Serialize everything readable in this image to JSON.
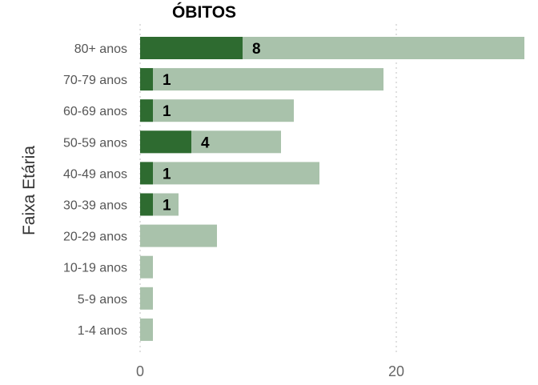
{
  "chart_data": {
    "type": "bar",
    "orientation": "horizontal",
    "title": "ÓBITOS",
    "ylabel": "Faixa Etária",
    "xlabel": "",
    "categories": [
      "80+ anos",
      "70-79 anos",
      "60-69 anos",
      "50-59 anos",
      "40-49 anos",
      "30-39 anos",
      "20-29 anos",
      "10-19 anos",
      "5-9 anos",
      "1-4 anos"
    ],
    "series": [
      {
        "values": [
          30,
          19,
          12,
          11,
          14,
          3,
          6,
          1,
          1,
          1
        ],
        "color": "#a9c2ab"
      },
      {
        "values": [
          8,
          1,
          1,
          4,
          1,
          1,
          0,
          0,
          0,
          0
        ],
        "color": "#2e6b30"
      }
    ],
    "data_labels": [
      "8",
      "1",
      "1",
      "4",
      "1",
      "1",
      "",
      "",
      "",
      ""
    ],
    "xticks": [
      0,
      20
    ],
    "xtick_labels": [
      "0",
      "20"
    ],
    "xlim": [
      0,
      30
    ],
    "grid": "vertical dotted",
    "legend": "none"
  }
}
